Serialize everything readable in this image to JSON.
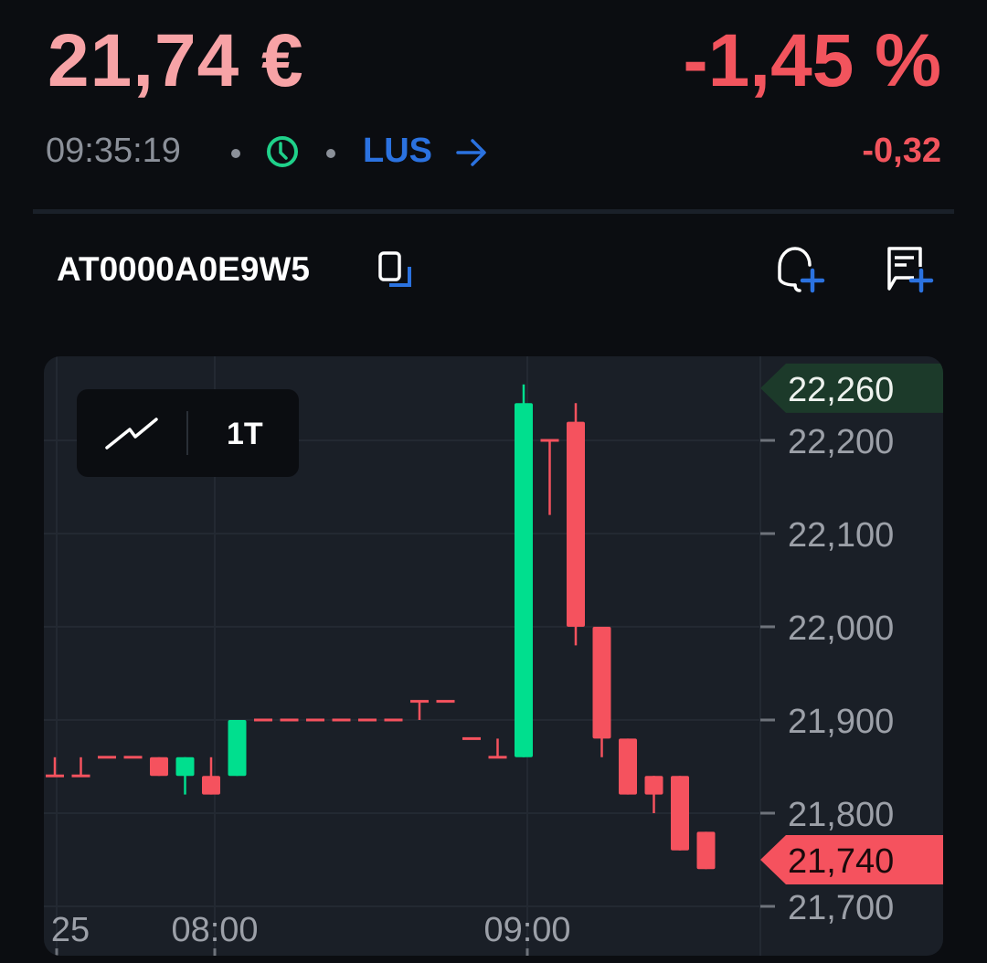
{
  "quote": {
    "price": "21,74 €",
    "change_percent": "-1,45 %",
    "change_absolute": "-0,32",
    "time": "09:35:19",
    "market_status_icon": "clock-icon",
    "venue": "LUS",
    "venue_arrow_icon": "arrow-right-icon"
  },
  "instrument": {
    "isin": "AT0000A0E9W5",
    "copy_icon": "copy-icon",
    "actions": [
      {
        "name": "add-price-alert-button",
        "icon": "bell-plus-icon"
      },
      {
        "name": "add-note-button",
        "icon": "chat-plus-icon"
      }
    ]
  },
  "chart_toolbar": {
    "chart_type_icon": "line-chart-icon",
    "timeframe": "1T"
  },
  "colors": {
    "up": "#00df8e",
    "down": "#f5525e",
    "accent": "#2b72e0",
    "price_positive": "#f7a3a6",
    "change_negative": "#f2545d"
  },
  "chart_data": {
    "type": "candlestick",
    "interval_minutes": 5,
    "ylim": [
      21.66,
      22.3
    ],
    "y_ticks": [
      "22,200",
      "22,100",
      "22,000",
      "21,900",
      "21,800",
      "21,700"
    ],
    "y_tick_values": [
      22.2,
      22.1,
      22.0,
      21.9,
      21.8,
      21.7
    ],
    "x_ticks": [
      "25",
      "08:00",
      "09:00"
    ],
    "grid": true,
    "high_label": "22,260",
    "last_label": "21,740",
    "candles": [
      {
        "t": "07:30",
        "o": 21.84,
        "h": 21.86,
        "l": 21.84,
        "c": 21.84
      },
      {
        "t": "07:35",
        "o": 21.84,
        "h": 21.86,
        "l": 21.84,
        "c": 21.84
      },
      {
        "t": "07:40",
        "o": 21.86,
        "h": 21.86,
        "l": 21.86,
        "c": 21.86
      },
      {
        "t": "07:45",
        "o": 21.86,
        "h": 21.86,
        "l": 21.86,
        "c": 21.86
      },
      {
        "t": "07:50",
        "o": 21.86,
        "h": 21.86,
        "l": 21.84,
        "c": 21.84
      },
      {
        "t": "07:55",
        "o": 21.84,
        "h": 21.86,
        "l": 21.82,
        "c": 21.86
      },
      {
        "t": "08:00",
        "o": 21.84,
        "h": 21.86,
        "l": 21.82,
        "c": 21.82
      },
      {
        "t": "08:05",
        "o": 21.84,
        "h": 21.9,
        "l": 21.84,
        "c": 21.9
      },
      {
        "t": "08:10",
        "o": 21.9,
        "h": 21.9,
        "l": 21.9,
        "c": 21.9
      },
      {
        "t": "08:15",
        "o": 21.9,
        "h": 21.9,
        "l": 21.9,
        "c": 21.9
      },
      {
        "t": "08:20",
        "o": 21.9,
        "h": 21.9,
        "l": 21.9,
        "c": 21.9
      },
      {
        "t": "08:25",
        "o": 21.9,
        "h": 21.9,
        "l": 21.9,
        "c": 21.9
      },
      {
        "t": "08:30",
        "o": 21.9,
        "h": 21.9,
        "l": 21.9,
        "c": 21.9
      },
      {
        "t": "08:35",
        "o": 21.9,
        "h": 21.9,
        "l": 21.9,
        "c": 21.9
      },
      {
        "t": "08:40",
        "o": 21.92,
        "h": 21.92,
        "l": 21.9,
        "c": 21.92
      },
      {
        "t": "08:45",
        "o": 21.92,
        "h": 21.92,
        "l": 21.92,
        "c": 21.92
      },
      {
        "t": "08:50",
        "o": 21.88,
        "h": 21.88,
        "l": 21.88,
        "c": 21.88
      },
      {
        "t": "08:55",
        "o": 21.86,
        "h": 21.88,
        "l": 21.86,
        "c": 21.86
      },
      {
        "t": "09:00",
        "o": 21.86,
        "h": 22.26,
        "l": 21.86,
        "c": 22.24
      },
      {
        "t": "09:05",
        "o": 22.2,
        "h": 22.2,
        "l": 22.12,
        "c": 22.2
      },
      {
        "t": "09:10",
        "o": 22.22,
        "h": 22.24,
        "l": 21.98,
        "c": 22.0
      },
      {
        "t": "09:15",
        "o": 22.0,
        "h": 22.0,
        "l": 21.86,
        "c": 21.88
      },
      {
        "t": "09:20",
        "o": 21.88,
        "h": 21.88,
        "l": 21.82,
        "c": 21.82
      },
      {
        "t": "09:25",
        "o": 21.84,
        "h": 21.84,
        "l": 21.8,
        "c": 21.82
      },
      {
        "t": "09:30",
        "o": 21.84,
        "h": 21.84,
        "l": 21.76,
        "c": 21.76
      },
      {
        "t": "09:35",
        "o": 21.78,
        "h": 21.78,
        "l": 21.74,
        "c": 21.74
      }
    ]
  }
}
